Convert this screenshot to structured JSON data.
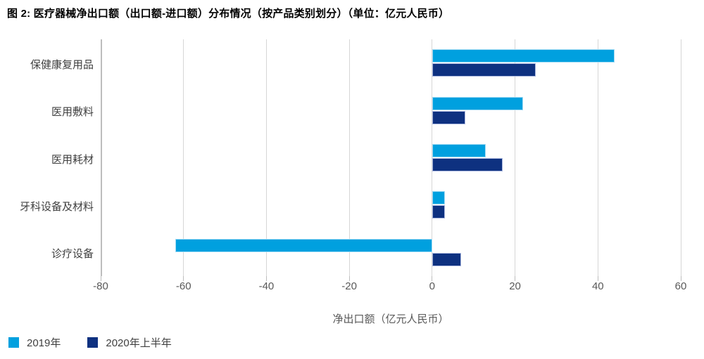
{
  "title": "图 2: 医疗器械净出口额（出口额-进口额）分布情况（按产品类别划分）（单位：亿元人民币）",
  "chart_data": {
    "type": "bar",
    "orientation": "horizontal",
    "title": "图 2: 医疗器械净出口额（出口额-进口额）分布情况（按产品类别划分）（单位：亿元人民币）",
    "categories": [
      "保健康复用品",
      "医用敷料",
      "医用耗材",
      "牙科设备及材料",
      "诊疗设备"
    ],
    "series": [
      {
        "name": "2019年",
        "color": "#00A0DF",
        "values": [
          44,
          22,
          13,
          3,
          -62
        ]
      },
      {
        "name": "2020年上半年",
        "color": "#0E3180",
        "values": [
          25,
          8,
          17,
          3,
          7
        ]
      }
    ],
    "xlabel": "净出口额（亿元人民币）",
    "xlim": [
      -80,
      60
    ],
    "xticks": [
      -80,
      -60,
      -40,
      -20,
      0,
      20,
      40,
      60
    ],
    "grid": "vertical",
    "gridline_color": "#d6d6d6",
    "legend_position": "bottom-left"
  }
}
